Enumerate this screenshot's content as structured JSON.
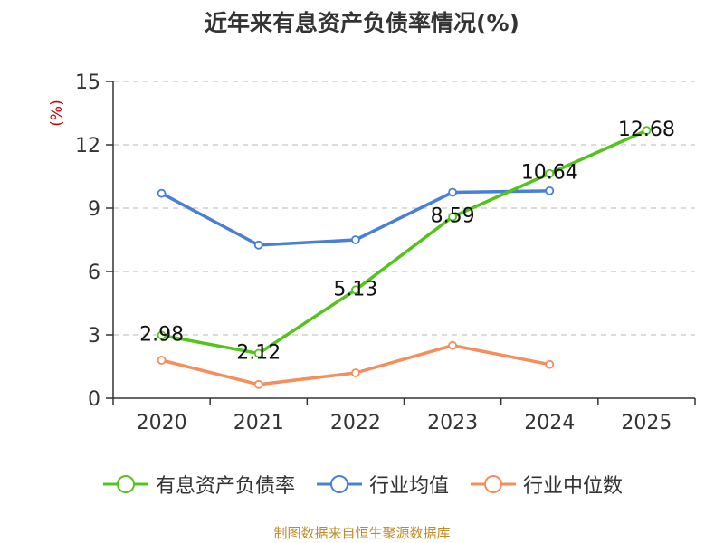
{
  "chart_data": {
    "type": "line",
    "title": "近年来有息资产负债率情况(%)",
    "ylabel": "(%)",
    "xlabel": "",
    "ylim": [
      0,
      15
    ],
    "yticks": [
      0,
      3,
      6,
      9,
      12,
      15
    ],
    "categories": [
      "2020",
      "2021",
      "2022",
      "2023",
      "2024",
      "2025"
    ],
    "grid": true,
    "legend_position": "bottom",
    "series": [
      {
        "name": "有息资产负债率",
        "color": "#52c41a",
        "values": [
          2.98,
          2.12,
          5.13,
          8.59,
          10.64,
          12.68
        ],
        "show_labels": true
      },
      {
        "name": "行业均值",
        "color": "#4a7fd6",
        "values": [
          9.7,
          7.25,
          7.5,
          9.75,
          9.82,
          null
        ],
        "show_labels": false
      },
      {
        "name": "行业中位数",
        "color": "#f58d5c",
        "values": [
          1.8,
          0.65,
          1.2,
          2.5,
          1.6,
          null
        ],
        "show_labels": false
      }
    ],
    "ylabel_color": "#cc0000",
    "source": "制图数据来自恒生聚源数据库"
  }
}
